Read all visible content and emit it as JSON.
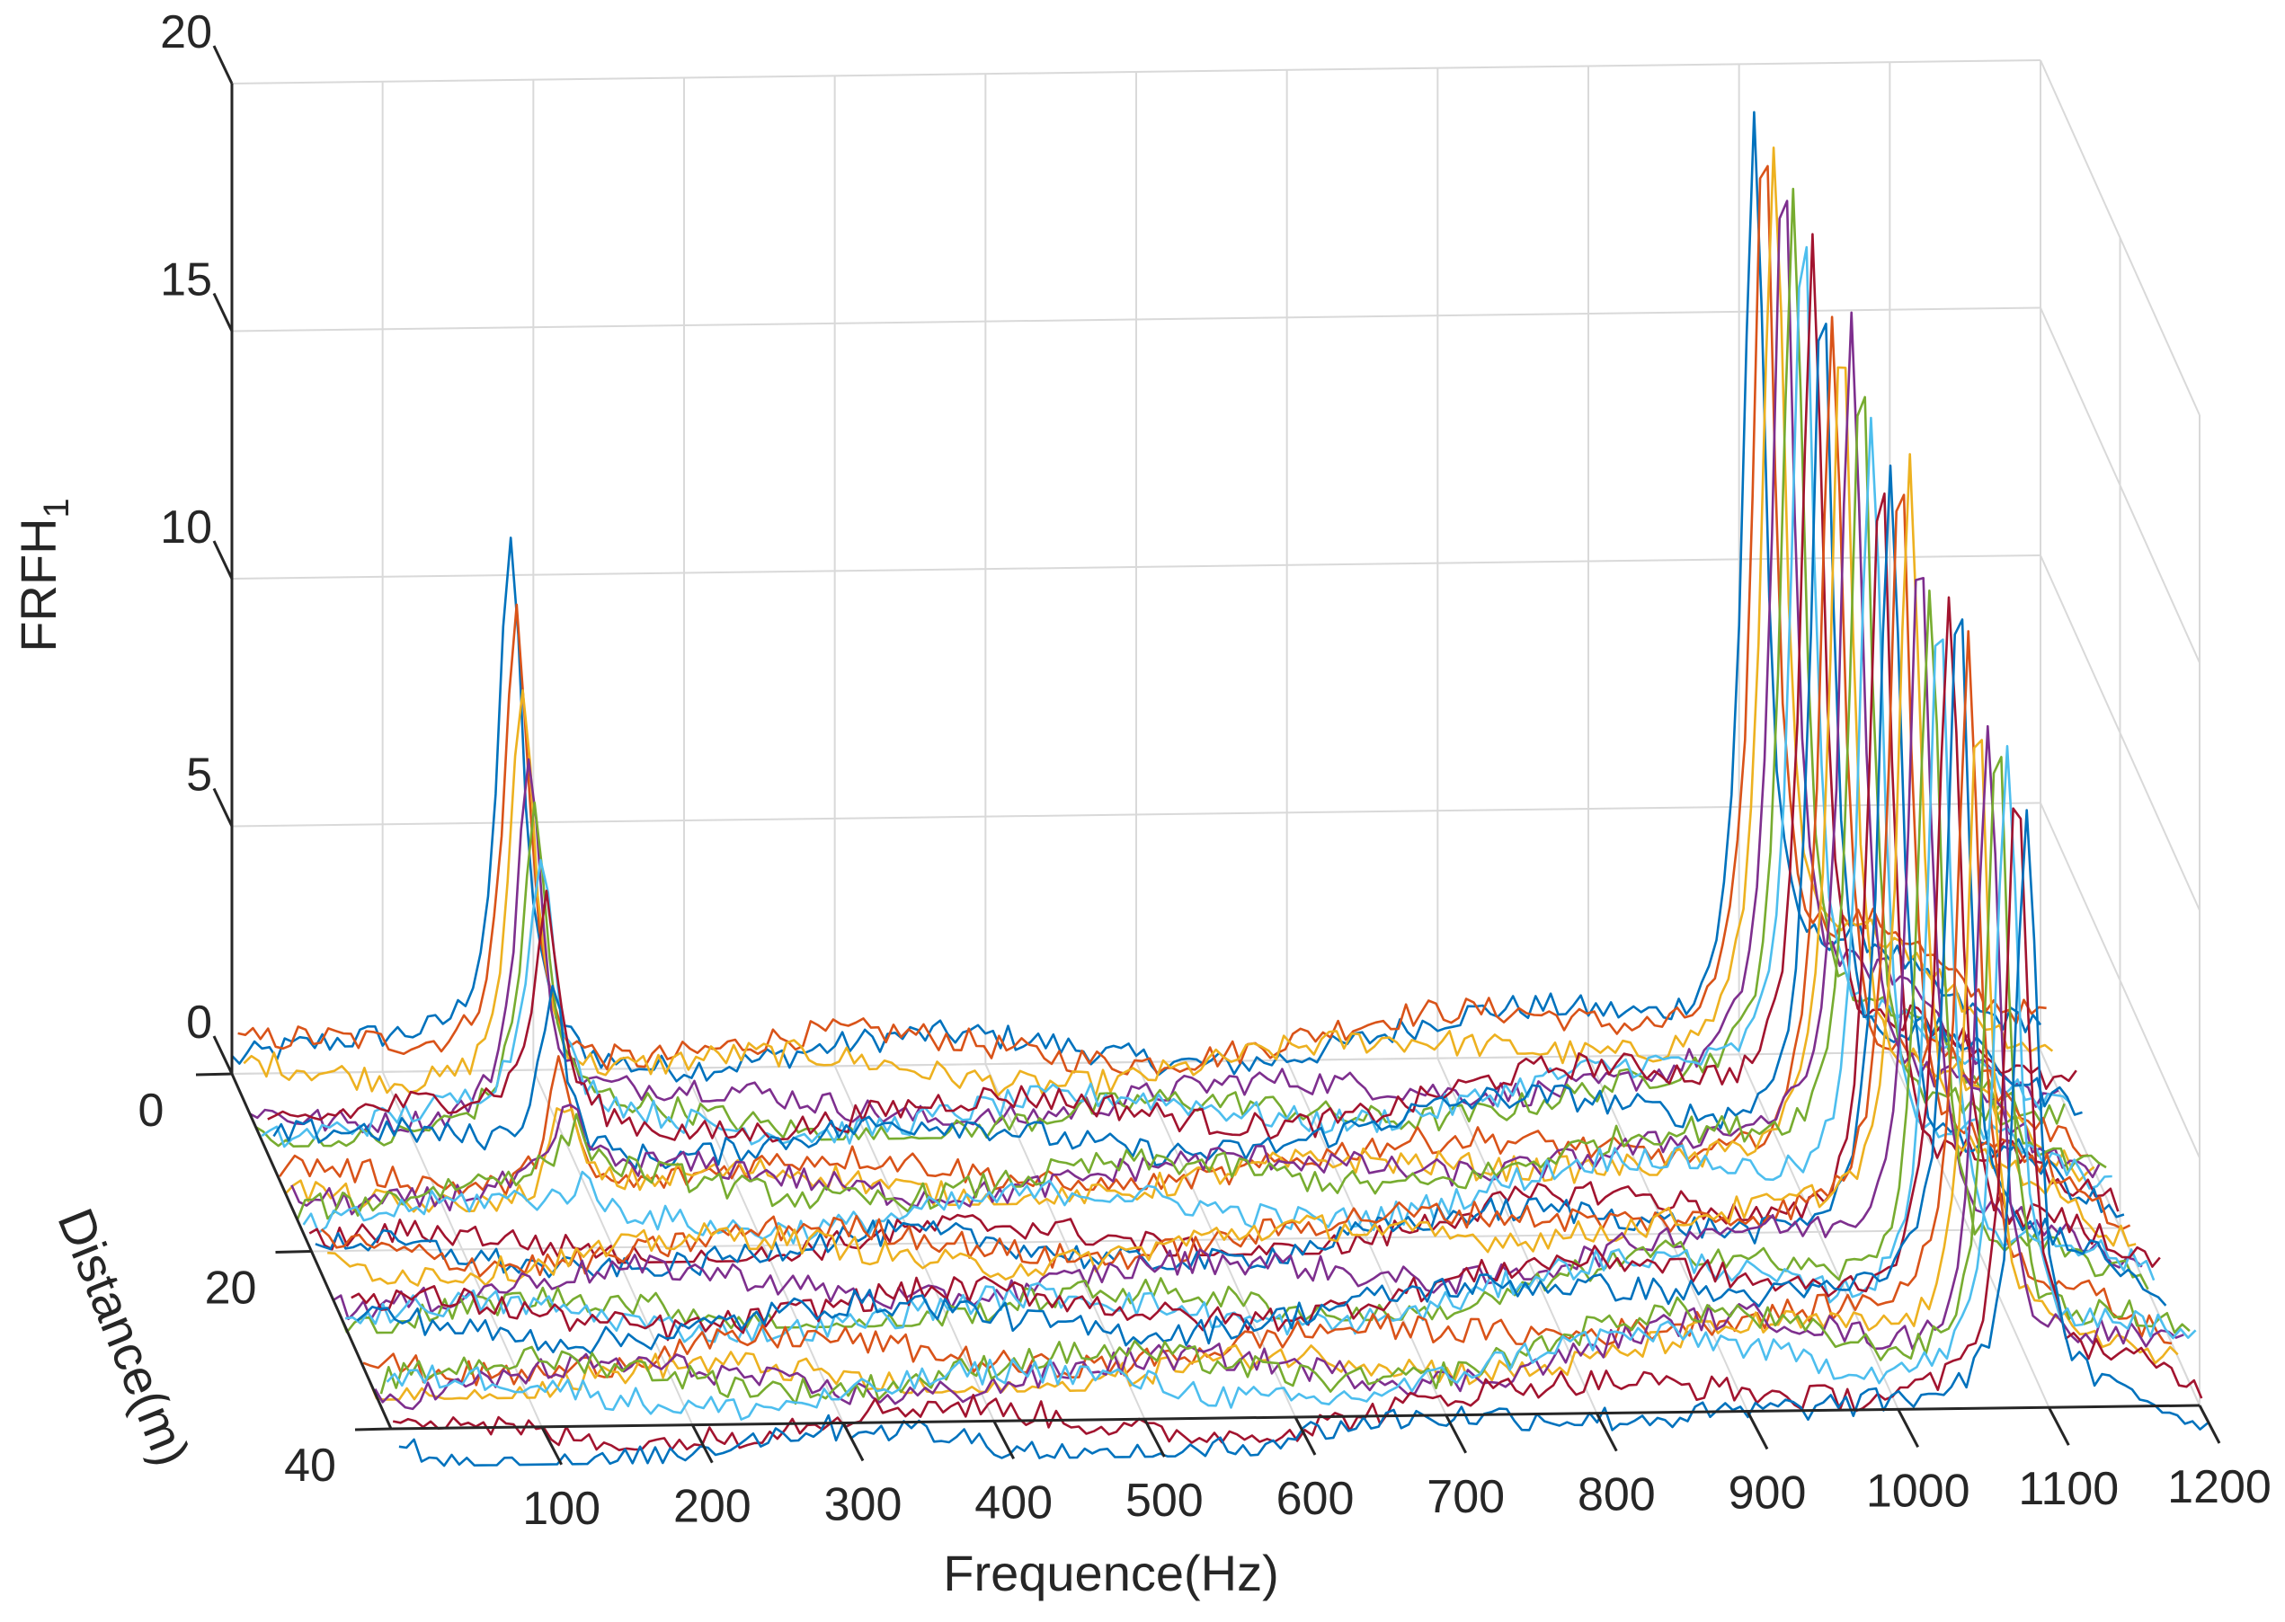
{
  "chart_data": {
    "type": "line",
    "subtype": "3d-waterfall",
    "title": "",
    "xlabel": "Frequence(Hz)",
    "ylabel": "Distance(m)",
    "zlabel_main": "FRFH",
    "zlabel_sub": "1",
    "x_ticks": [
      100,
      200,
      300,
      400,
      500,
      600,
      700,
      800,
      900,
      1000,
      1100,
      1200
    ],
    "y_ticks": [
      0,
      20,
      40
    ],
    "z_ticks": [
      0,
      5,
      10,
      15,
      20
    ],
    "xlim": [
      0,
      1200
    ],
    "ylim": [
      0,
      40
    ],
    "zlim": [
      0,
      20
    ],
    "grid": true,
    "series_count": 29,
    "distance_step_m": 1.5,
    "colors": [
      "#0072BD",
      "#D95319",
      "#EDB120",
      "#7E2F8E",
      "#77AC30",
      "#4DBEEE",
      "#A2142F"
    ],
    "features": {
      "peak_low_hz": 185,
      "peak_low_max": 10.5,
      "peak_high_hz": 1020,
      "peak_high_max": 19.0,
      "hump_hz": 880
    }
  }
}
